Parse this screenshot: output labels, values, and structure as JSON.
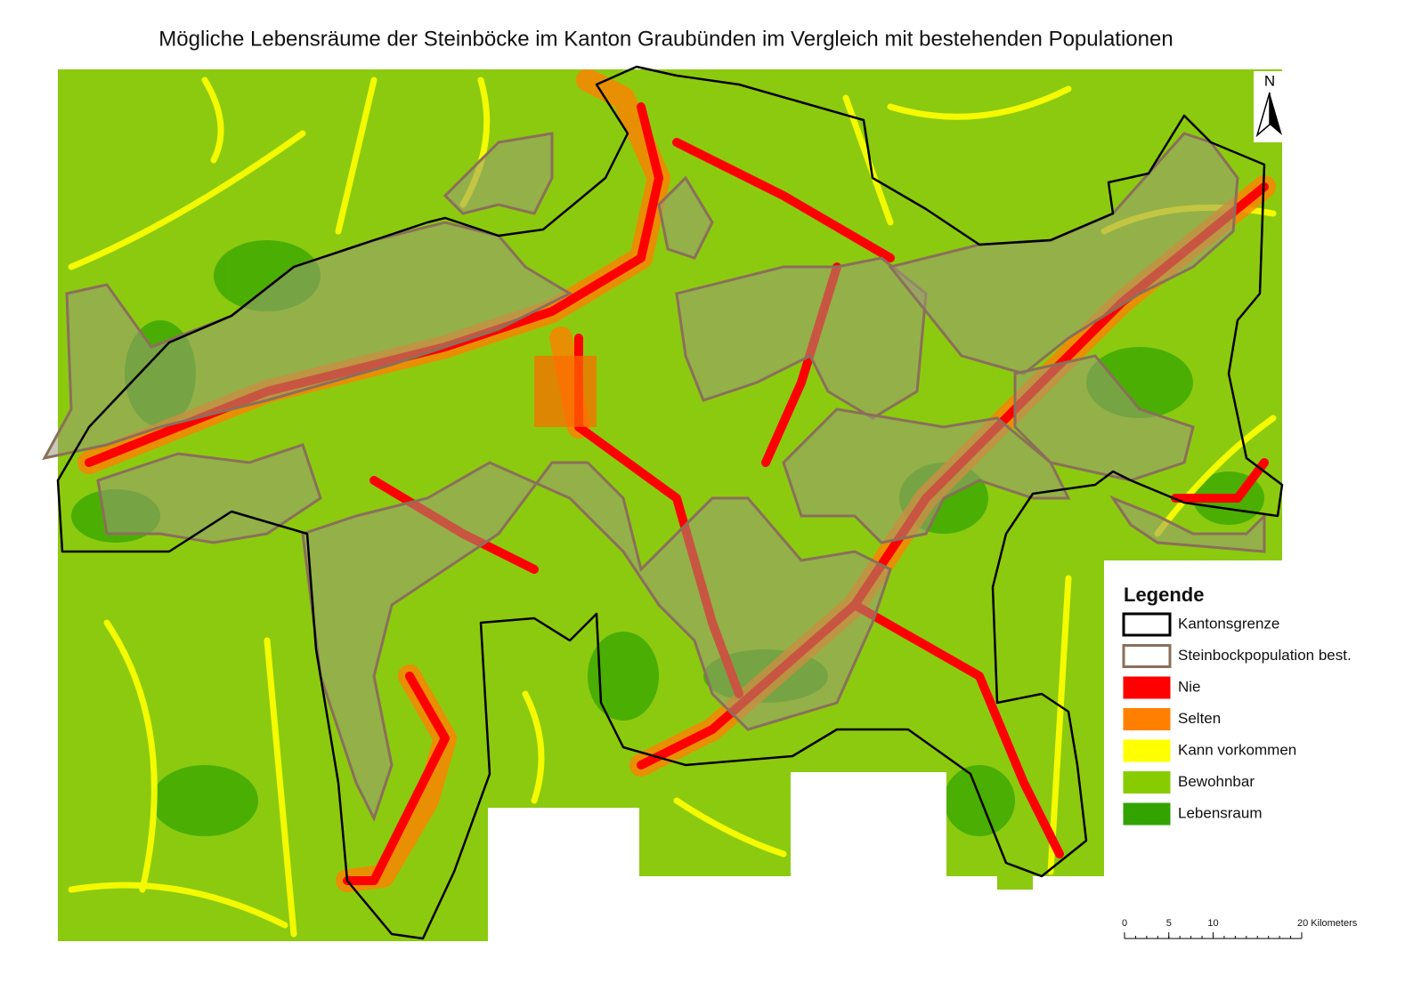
{
  "title": "Mögliche Lebensräume der Steinböcke im Kanton Graubünden im Vergleich mit bestehenden Populationen",
  "north_arrow": {
    "label": "N"
  },
  "legend": {
    "title": "Legende",
    "entries": [
      {
        "label": "Kantonsgrenze",
        "fill": "#ffffff",
        "stroke": "#000000"
      },
      {
        "label": "Steinbockpopulation best.",
        "fill": "#ffffff",
        "stroke": "#8a6f5a"
      },
      {
        "label": "Nie",
        "fill": "#ff0000",
        "stroke": "#ff0000"
      },
      {
        "label": "Selten",
        "fill": "#ff8000",
        "stroke": "#ff8000"
      },
      {
        "label": "Kann vorkommen",
        "fill": "#ffff00",
        "stroke": "#ffff00"
      },
      {
        "label": "Bewohnbar",
        "fill": "#88cc00",
        "stroke": "#88cc00"
      },
      {
        "label": "Lebensraum",
        "fill": "#33a300",
        "stroke": "#33a300"
      }
    ]
  },
  "scale_bar": {
    "ticks": [
      0,
      5,
      10,
      {
        "value": 20,
        "label": "20 Kilometers"
      }
    ]
  }
}
